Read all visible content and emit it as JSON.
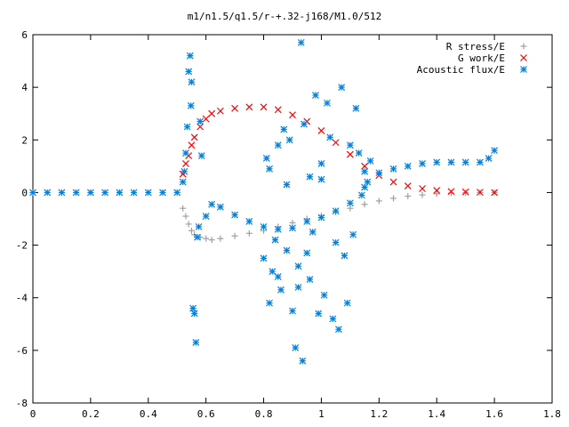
{
  "chart_data": {
    "type": "scatter",
    "title": "m1/n1.5/q1.5/r-+.32-j168/M1.0/512",
    "xlabel": "",
    "ylabel": "",
    "xlim": [
      0,
      1.8
    ],
    "ylim": [
      -8,
      6
    ],
    "x_ticks": [
      "0",
      "0.2",
      "0.4",
      "0.6",
      "0.8",
      "1",
      "1.2",
      "1.4",
      "1.6",
      "1.8"
    ],
    "y_ticks": [
      "-8",
      "-6",
      "-4",
      "-2",
      "0",
      "2",
      "4",
      "6"
    ],
    "grid": false,
    "legend_position": "top-right",
    "series": [
      {
        "name": "R stress/E",
        "marker": "plus",
        "color": "#a0a0a0",
        "points": [
          [
            0.52,
            -0.6
          ],
          [
            0.53,
            -0.9
          ],
          [
            0.54,
            -1.2
          ],
          [
            0.55,
            -1.45
          ],
          [
            0.56,
            -1.6
          ],
          [
            0.58,
            -1.7
          ],
          [
            0.6,
            -1.75
          ],
          [
            0.62,
            -1.8
          ],
          [
            0.65,
            -1.75
          ],
          [
            0.7,
            -1.65
          ],
          [
            0.75,
            -1.55
          ],
          [
            0.8,
            -1.45
          ],
          [
            0.85,
            -1.3
          ],
          [
            0.9,
            -1.15
          ],
          [
            0.95,
            -1.0
          ],
          [
            1.0,
            -0.88
          ],
          [
            1.05,
            -0.75
          ],
          [
            1.1,
            -0.6
          ],
          [
            1.15,
            -0.45
          ],
          [
            1.2,
            -0.32
          ],
          [
            1.25,
            -0.22
          ],
          [
            1.3,
            -0.14
          ],
          [
            1.35,
            -0.09
          ],
          [
            1.4,
            -0.05
          ],
          [
            1.45,
            -0.02
          ],
          [
            1.5,
            -0.01
          ],
          [
            1.55,
            0.0
          ],
          [
            1.6,
            0.0
          ]
        ]
      },
      {
        "name": "G work/E",
        "marker": "cross",
        "color": "#ff0000",
        "points": [
          [
            0.52,
            0.7
          ],
          [
            0.53,
            1.1
          ],
          [
            0.54,
            1.4
          ],
          [
            0.55,
            1.8
          ],
          [
            0.56,
            2.1
          ],
          [
            0.58,
            2.5
          ],
          [
            0.6,
            2.8
          ],
          [
            0.62,
            3.0
          ],
          [
            0.65,
            3.1
          ],
          [
            0.7,
            3.2
          ],
          [
            0.75,
            3.25
          ],
          [
            0.8,
            3.25
          ],
          [
            0.85,
            3.15
          ],
          [
            0.9,
            2.95
          ],
          [
            0.95,
            2.7
          ],
          [
            1.0,
            2.35
          ],
          [
            1.05,
            1.9
          ],
          [
            1.1,
            1.45
          ],
          [
            1.15,
            1.0
          ],
          [
            1.2,
            0.65
          ],
          [
            1.25,
            0.4
          ],
          [
            1.3,
            0.25
          ],
          [
            1.35,
            0.15
          ],
          [
            1.4,
            0.08
          ],
          [
            1.45,
            0.04
          ],
          [
            1.5,
            0.02
          ],
          [
            1.55,
            0.01
          ],
          [
            1.6,
            0.0
          ]
        ]
      },
      {
        "name": "Acoustic flux/E",
        "marker": "star",
        "color": "#0080e0",
        "points": [
          [
            0.0,
            0.0
          ],
          [
            0.05,
            0.0
          ],
          [
            0.1,
            0.0
          ],
          [
            0.15,
            0.0
          ],
          [
            0.2,
            0.0
          ],
          [
            0.25,
            0.0
          ],
          [
            0.3,
            0.0
          ],
          [
            0.35,
            0.0
          ],
          [
            0.4,
            0.0
          ],
          [
            0.45,
            0.0
          ],
          [
            0.5,
            0.0
          ],
          [
            0.52,
            0.4
          ],
          [
            0.525,
            0.8
          ],
          [
            0.53,
            1.5
          ],
          [
            0.535,
            2.5
          ],
          [
            0.54,
            4.6
          ],
          [
            0.545,
            5.2
          ],
          [
            0.548,
            3.3
          ],
          [
            0.55,
            4.2
          ],
          [
            0.555,
            -4.4
          ],
          [
            0.56,
            -4.6
          ],
          [
            0.565,
            -5.7
          ],
          [
            0.57,
            -1.7
          ],
          [
            0.575,
            -1.3
          ],
          [
            0.58,
            2.7
          ],
          [
            0.585,
            1.4
          ],
          [
            0.6,
            -0.9
          ],
          [
            0.62,
            -0.45
          ],
          [
            0.65,
            -0.55
          ],
          [
            0.7,
            -0.85
          ],
          [
            0.75,
            -1.1
          ],
          [
            0.8,
            -1.3
          ],
          [
            0.85,
            -1.4
          ],
          [
            0.9,
            -1.35
          ],
          [
            0.95,
            -1.1
          ],
          [
            1.0,
            -0.95
          ],
          [
            1.05,
            -0.7
          ],
          [
            1.1,
            -0.4
          ],
          [
            1.15,
            0.2
          ],
          [
            1.2,
            0.75
          ],
          [
            1.25,
            0.9
          ],
          [
            1.3,
            1.0
          ],
          [
            1.35,
            1.1
          ],
          [
            1.4,
            1.15
          ],
          [
            1.45,
            1.15
          ],
          [
            1.5,
            1.15
          ],
          [
            1.55,
            1.15
          ],
          [
            1.58,
            1.3
          ],
          [
            1.6,
            1.6
          ],
          [
            0.8,
            -2.5
          ],
          [
            0.81,
            1.3
          ],
          [
            0.82,
            0.9
          ],
          [
            0.83,
            -3.0
          ],
          [
            0.84,
            -1.8
          ],
          [
            0.85,
            1.8
          ],
          [
            0.86,
            -3.7
          ],
          [
            0.87,
            2.4
          ],
          [
            0.88,
            -2.2
          ],
          [
            0.89,
            2.0
          ],
          [
            0.9,
            -4.5
          ],
          [
            0.91,
            -5.9
          ],
          [
            0.92,
            -3.6
          ],
          [
            0.93,
            5.7
          ],
          [
            0.935,
            -6.4
          ],
          [
            0.94,
            2.6
          ],
          [
            0.95,
            -2.3
          ],
          [
            0.96,
            0.6
          ],
          [
            0.97,
            -1.5
          ],
          [
            0.98,
            3.7
          ],
          [
            0.99,
            -4.6
          ],
          [
            1.0,
            1.1
          ],
          [
            1.01,
            -3.9
          ],
          [
            1.02,
            3.4
          ],
          [
            1.03,
            2.1
          ],
          [
            1.04,
            -4.8
          ],
          [
            1.05,
            -1.9
          ],
          [
            1.06,
            -5.2
          ],
          [
            1.07,
            4.0
          ],
          [
            1.08,
            -2.4
          ],
          [
            1.09,
            -4.2
          ],
          [
            1.1,
            1.8
          ],
          [
            1.11,
            -1.6
          ],
          [
            1.12,
            3.2
          ],
          [
            1.13,
            1.5
          ],
          [
            1.14,
            -0.1
          ],
          [
            1.15,
            0.8
          ],
          [
            1.16,
            0.4
          ],
          [
            1.17,
            1.2
          ],
          [
            0.82,
            -4.2
          ],
          [
            0.85,
            -3.2
          ],
          [
            0.88,
            0.3
          ],
          [
            0.92,
            -2.8
          ],
          [
            0.96,
            -3.3
          ],
          [
            1.0,
            0.5
          ]
        ]
      }
    ]
  }
}
